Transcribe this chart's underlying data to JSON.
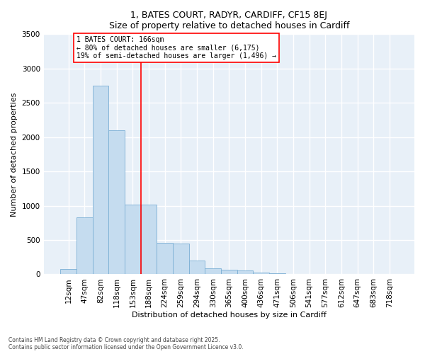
{
  "title_line1": "1, BATES COURT, RADYR, CARDIFF, CF15 8EJ",
  "title_line2": "Size of property relative to detached houses in Cardiff",
  "xlabel": "Distribution of detached houses by size in Cardiff",
  "ylabel": "Number of detached properties",
  "bar_color": "#c5dcef",
  "bar_edge_color": "#7bafd4",
  "background_color": "#e8f0f8",
  "grid_color": "#ffffff",
  "categories": [
    "12sqm",
    "47sqm",
    "82sqm",
    "118sqm",
    "153sqm",
    "188sqm",
    "224sqm",
    "259sqm",
    "294sqm",
    "330sqm",
    "365sqm",
    "400sqm",
    "436sqm",
    "471sqm",
    "506sqm",
    "541sqm",
    "577sqm",
    "612sqm",
    "647sqm",
    "683sqm",
    "718sqm"
  ],
  "values": [
    75,
    830,
    2750,
    2100,
    1020,
    1020,
    460,
    450,
    200,
    90,
    70,
    55,
    25,
    10,
    5,
    3,
    1,
    1,
    0,
    0,
    0
  ],
  "ylim": [
    0,
    3500
  ],
  "yticks": [
    0,
    500,
    1000,
    1500,
    2000,
    2500,
    3000,
    3500
  ],
  "property_line_x": 4.5,
  "property_line_label": "1 BATES COURT: 166sqm",
  "annotation_line1": "← 80% of detached houses are smaller (6,175)",
  "annotation_line2": "19% of semi-detached houses are larger (1,496) →",
  "annotation_box_color": "white",
  "annotation_box_edge": "red",
  "line_color": "red",
  "footer_line1": "Contains HM Land Registry data © Crown copyright and database right 2025.",
  "footer_line2": "Contains public sector information licensed under the Open Government Licence v3.0."
}
